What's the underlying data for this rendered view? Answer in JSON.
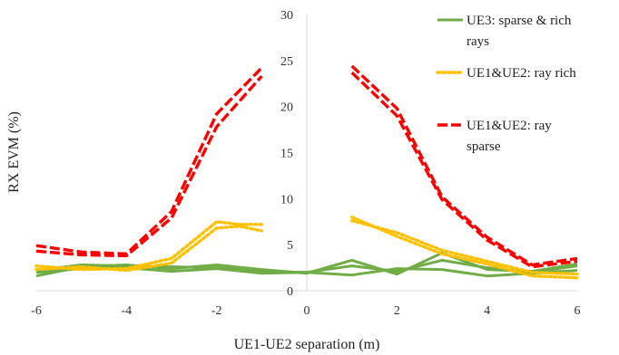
{
  "chart_data": {
    "type": "line",
    "xlabel": "UE1-UE2 separation (m)",
    "ylabel": "RX EVM (%)",
    "xlim": [
      -6,
      6
    ],
    "ylim": [
      0,
      30
    ],
    "x_ticks": [
      "-6",
      "-4",
      "-2",
      "0",
      "2",
      "4",
      "6"
    ],
    "y_ticks": [
      "0",
      "5",
      "10",
      "15",
      "20",
      "25",
      "30"
    ],
    "grid": false,
    "legend_position": "top-right",
    "legend": [
      {
        "lines": [
          "UE3: sparse & rich",
          "rays"
        ],
        "color": "#70AD47",
        "dash": "solid"
      },
      {
        "lines": [
          "UE1&UE2: ray rich"
        ],
        "color": "#FFC000",
        "dash": "dotted"
      },
      {
        "lines": [
          "UE1&UE2: ray",
          "sparse"
        ],
        "color": "#FF0000",
        "dash": "dashed"
      }
    ],
    "series": [
      {
        "name": "UE3: sparse & rich rays",
        "color": "#70AD47",
        "dash": "solid",
        "x": [
          -6,
          -5,
          -4,
          -3,
          -2,
          -1,
          0,
          1,
          2,
          3,
          4,
          5,
          6
        ],
        "y": [
          1.6,
          2.6,
          2.8,
          2.4,
          2.8,
          2.3,
          1.9,
          3.3,
          1.8,
          4.1,
          2.3,
          2.1,
          2.9
        ]
      },
      {
        "name": "UE3: sparse & rich rays",
        "color": "#70AD47",
        "dash": "solid",
        "x": [
          -6,
          -5,
          -4,
          -3,
          -2,
          -1,
          0,
          1,
          2,
          3,
          4,
          5,
          6
        ],
        "y": [
          2.2,
          2.8,
          2.7,
          2.6,
          2.5,
          2.1,
          2.0,
          2.7,
          2.1,
          3.3,
          2.5,
          2.0,
          2.7
        ]
      },
      {
        "name": "UE3: sparse & rich rays",
        "color": "#70AD47",
        "dash": "solid",
        "x": [
          -6,
          -5,
          -4,
          -3,
          -2,
          -1,
          0,
          1,
          2,
          3,
          4,
          5,
          6
        ],
        "y": [
          2.0,
          2.4,
          2.5,
          2.1,
          2.4,
          1.9,
          2.0,
          1.7,
          2.4,
          2.3,
          1.6,
          1.9,
          2.2
        ]
      },
      {
        "name": "UE1&UE2: ray rich",
        "color": "#FFC000",
        "dash": "dotted",
        "x": [
          -6,
          -5,
          -4,
          -3,
          -2,
          -1.5,
          -1
        ],
        "y": [
          2.7,
          2.3,
          2.4,
          3.5,
          7.5,
          7.2,
          7.2
        ]
      },
      {
        "name": "UE1&UE2: ray rich",
        "color": "#FFC000",
        "dash": "dotted",
        "x": [
          -6,
          -5,
          -4,
          -3,
          -2,
          -1.5,
          -1
        ],
        "y": [
          2.3,
          2.6,
          2.2,
          3.0,
          6.8,
          7.0,
          6.5
        ]
      },
      {
        "name": "UE1&UE2: ray rich",
        "color": "#FFC000",
        "dash": "dotted",
        "x": [
          1,
          2,
          3,
          4,
          5,
          6
        ],
        "y": [
          8.0,
          5.9,
          4.0,
          2.9,
          1.6,
          1.4
        ]
      },
      {
        "name": "UE1&UE2: ray rich",
        "color": "#FFC000",
        "dash": "dotted",
        "x": [
          1,
          2,
          3,
          4,
          5,
          6
        ],
        "y": [
          7.6,
          6.3,
          4.4,
          3.2,
          2.0,
          1.8
        ]
      },
      {
        "name": "UE1&UE2: ray sparse",
        "color": "#FF0000",
        "dash": "dashed",
        "x": [
          -6,
          -5,
          -4,
          -3,
          -2,
          -1
        ],
        "y": [
          4.9,
          4.2,
          4.0,
          8.6,
          19.2,
          24.2
        ]
      },
      {
        "name": "UE1&UE2: ray sparse",
        "color": "#FF0000",
        "dash": "dashed",
        "x": [
          -6,
          -5,
          -4,
          -3,
          -2,
          -1
        ],
        "y": [
          4.3,
          3.9,
          3.8,
          7.9,
          17.8,
          23.3
        ]
      },
      {
        "name": "UE1&UE2: ray sparse",
        "color": "#FF0000",
        "dash": "dashed",
        "x": [
          1,
          2,
          3,
          4,
          5,
          6
        ],
        "y": [
          24.4,
          19.8,
          10.2,
          5.8,
          2.8,
          3.5
        ]
      },
      {
        "name": "UE1&UE2: ray sparse",
        "color": "#FF0000",
        "dash": "dashed",
        "x": [
          1,
          2,
          3,
          4,
          5,
          6
        ],
        "y": [
          23.7,
          19.0,
          9.9,
          5.5,
          2.6,
          3.2
        ]
      }
    ]
  }
}
